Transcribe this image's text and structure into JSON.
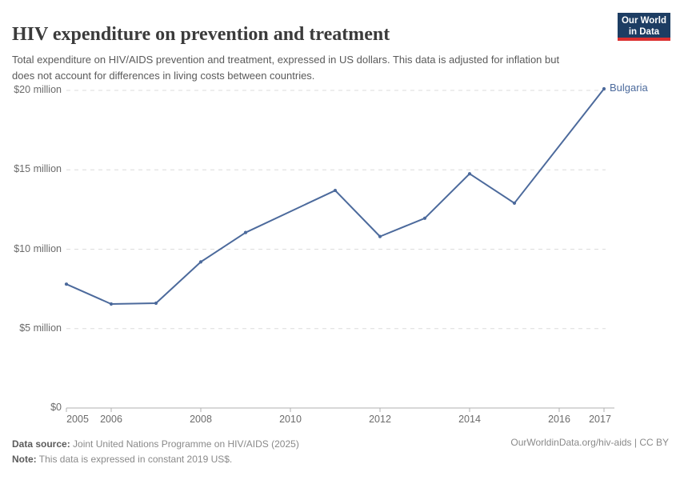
{
  "header": {
    "title": "HIV expenditure on prevention and treatment",
    "subtitle": "Total expenditure on HIV/AIDS prevention and treatment, expressed in US dollars. This data is adjusted for inflation but does not account for differences in living costs between countries.",
    "logo": {
      "line1": "Our World",
      "line2": "in Data"
    }
  },
  "colors": {
    "line": "#4c6a9c",
    "grid": "#dcdcdc",
    "axis": "#b0b0b0",
    "tick_label": "#6b6b6b",
    "entity_label": "#4c6a9c",
    "logo_bg": "#1d3d63",
    "logo_accent": "#dc2f2f"
  },
  "chart_data": {
    "type": "line",
    "title": "HIV expenditure on prevention and treatment",
    "unit": "US$ (constant 2019)",
    "xlim": [
      2005,
      2017
    ],
    "ylim_musd": [
      0,
      20
    ],
    "grid": "horizontal-dashed",
    "legend_position": "end-of-line-label",
    "series": [
      {
        "name": "Bulgaria",
        "color": "#4c6a9c",
        "points": [
          {
            "year": 2005,
            "value_musd": 7.8
          },
          {
            "year": 2006,
            "value_musd": 6.55
          },
          {
            "year": 2007,
            "value_musd": 6.6
          },
          {
            "year": 2008,
            "value_musd": 9.2
          },
          {
            "year": 2009,
            "value_musd": 11.05
          },
          {
            "year": 2011,
            "value_musd": 13.7
          },
          {
            "year": 2012,
            "value_musd": 10.8
          },
          {
            "year": 2013,
            "value_musd": 11.95
          },
          {
            "year": 2014,
            "value_musd": 14.75
          },
          {
            "year": 2015,
            "value_musd": 12.9
          },
          {
            "year": 2017,
            "value_musd": 20.1
          }
        ]
      }
    ],
    "y_ticks": [
      {
        "value_musd": 0,
        "label": "$0"
      },
      {
        "value_musd": 5,
        "label": "$5 million"
      },
      {
        "value_musd": 10,
        "label": "$10 million"
      },
      {
        "value_musd": 15,
        "label": "$15 million"
      },
      {
        "value_musd": 20,
        "label": "$20 million"
      }
    ],
    "x_ticks": [
      {
        "year": 2005,
        "label": "2005"
      },
      {
        "year": 2006,
        "label": "2006"
      },
      {
        "year": 2008,
        "label": "2008"
      },
      {
        "year": 2010,
        "label": "2010"
      },
      {
        "year": 2012,
        "label": "2012"
      },
      {
        "year": 2014,
        "label": "2014"
      },
      {
        "year": 2016,
        "label": "2016"
      },
      {
        "year": 2017,
        "label": "2017"
      }
    ]
  },
  "footer": {
    "data_source_label": "Data source:",
    "data_source_text": " Joint United Nations Programme on HIV/AIDS (2025)",
    "note_label": "Note:",
    "note_text": " This data is expressed in constant 2019 US$.",
    "link_text": "OurWorldinData.org/hiv-aids | CC BY"
  }
}
